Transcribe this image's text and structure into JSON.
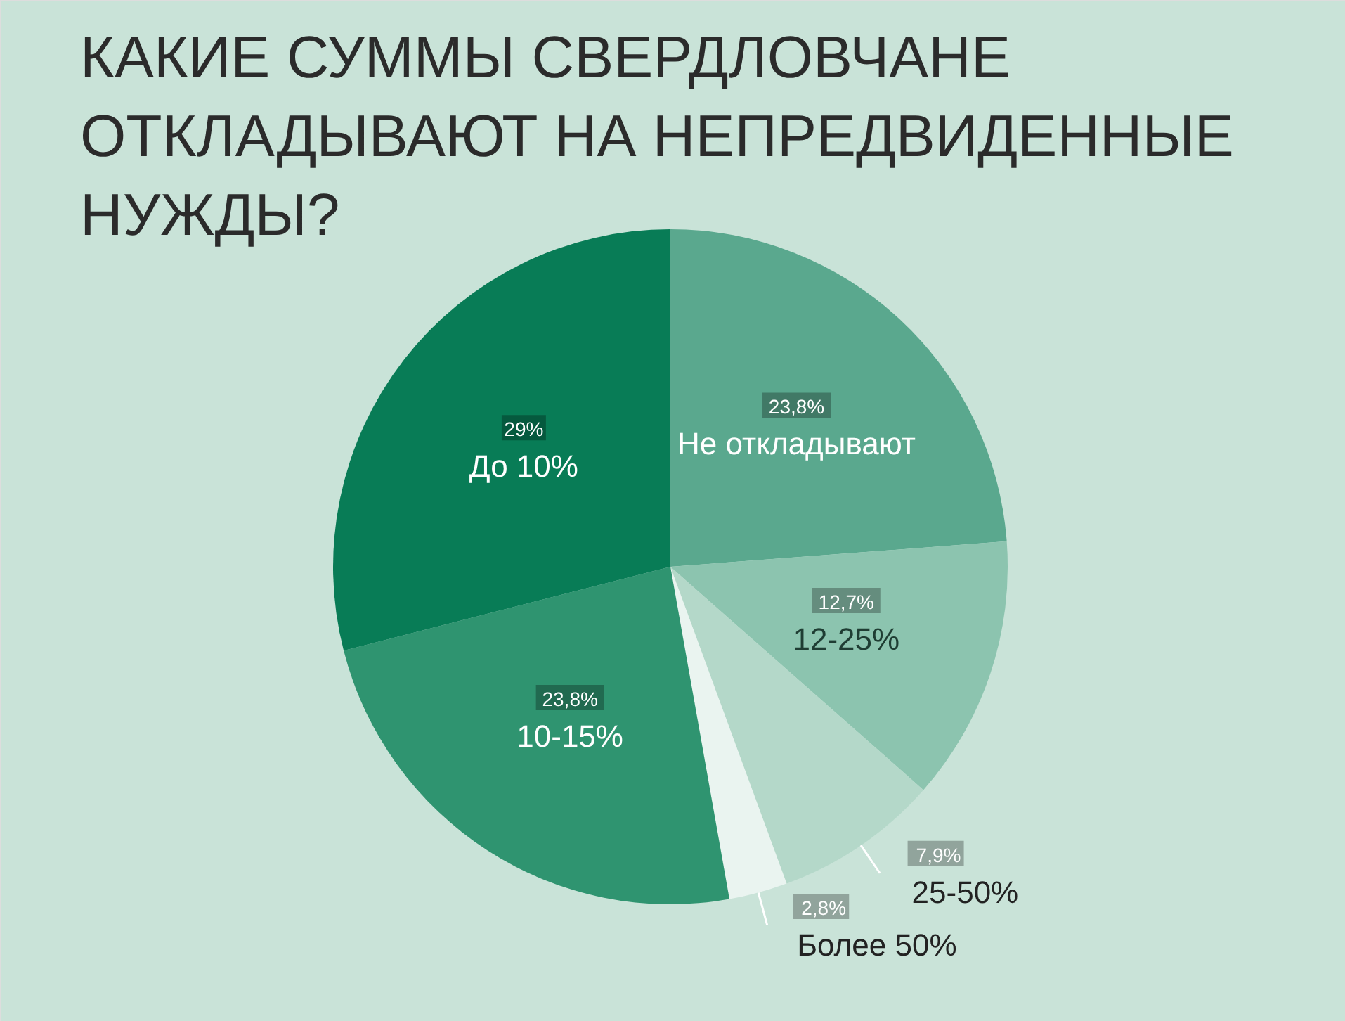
{
  "chart_data": {
    "type": "pie",
    "title": "КАКИЕ СУММЫ СВЕРДЛОВЧАНЕ ОТКЛАДЫВАЮТ НА НЕПРЕДВИДЕННЫЕ НУЖДЫ?",
    "categories": [
      "Не откладывают",
      "12-25%",
      "25-50%",
      "Более 50%",
      "10-15%",
      "До 10%"
    ],
    "values": [
      23.8,
      12.7,
      7.9,
      2.8,
      23.8,
      29
    ],
    "value_labels": [
      "23,8%",
      "12,7%",
      "7,9%",
      "2,8%",
      "23,8%",
      "29%"
    ],
    "colors": [
      "#5aa88e",
      "#8cc4af",
      "#b4d8c9",
      "#eaf4f0",
      "#2f9470",
      "#087c56"
    ]
  }
}
